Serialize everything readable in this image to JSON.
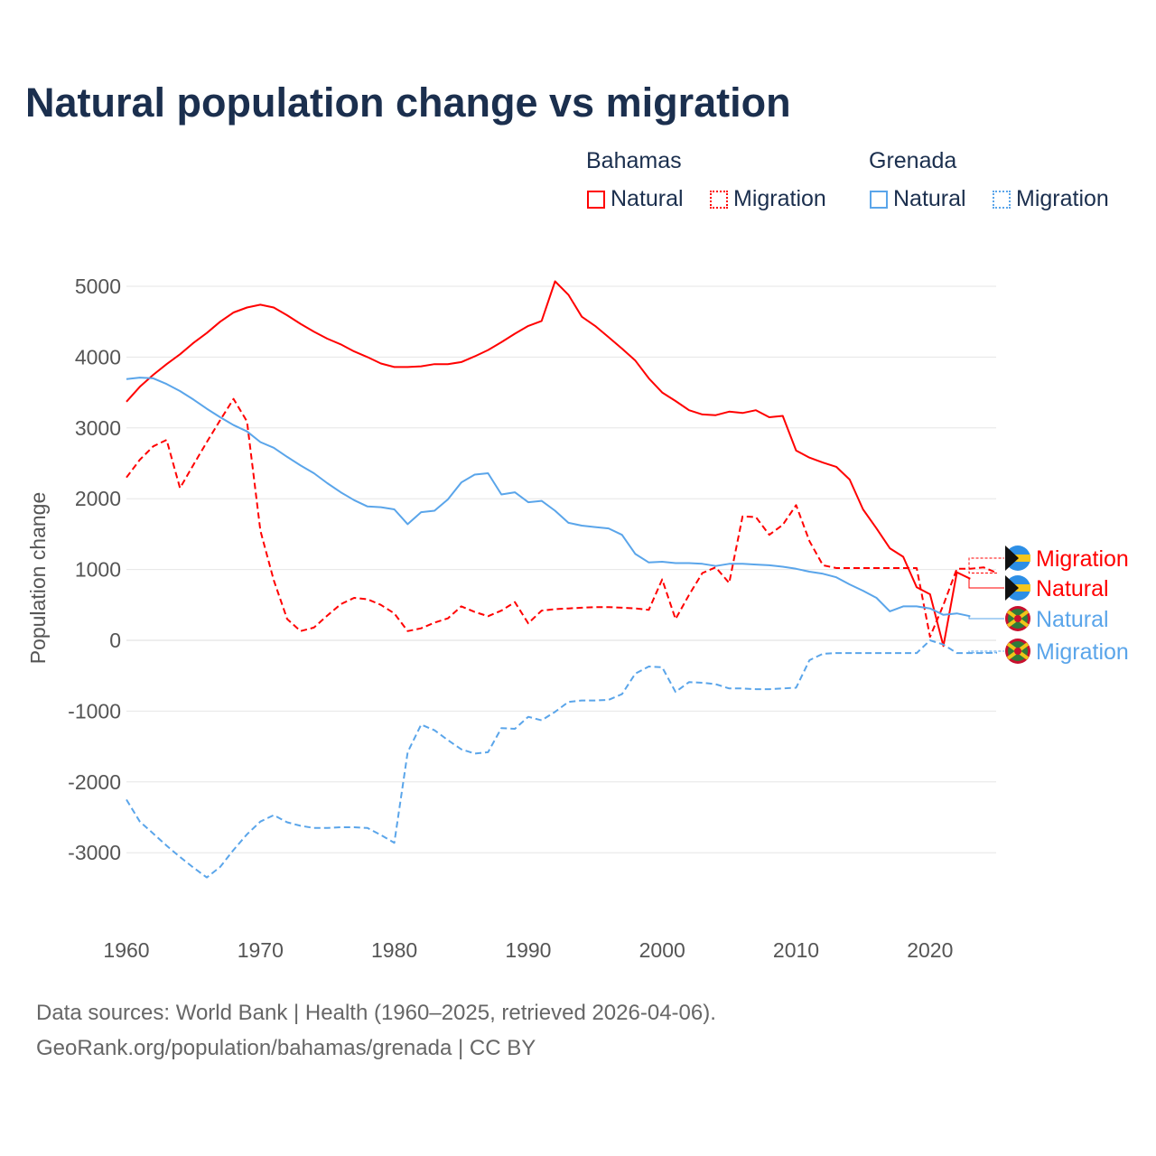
{
  "title": "Natural population change vs migration",
  "legend": {
    "groups": [
      {
        "name": "Bahamas",
        "color": "#ff0000",
        "items": [
          "Natural",
          "Migration"
        ]
      },
      {
        "name": "Grenada",
        "color": "#5aa5ea",
        "items": [
          "Natural",
          "Migration"
        ]
      }
    ]
  },
  "footer": {
    "line1": "Data sources: World Bank | Health (1960–2025, retrieved 2026-04-06).",
    "line2": "GeoRank.org/population/bahamas/grenada | CC BY"
  },
  "chart_data": {
    "type": "line",
    "title": "Natural population change vs migration",
    "xlabel": "",
    "ylabel": "Population change",
    "xlim": [
      1960,
      2025
    ],
    "ylim": [
      -4000,
      5500
    ],
    "xticks": [
      1960,
      1970,
      1980,
      1990,
      2000,
      2010,
      2020
    ],
    "yticks": [
      -3000,
      -2000,
      -1000,
      0,
      1000,
      2000,
      3000,
      4000,
      5000
    ],
    "grid": true,
    "series": [
      {
        "name": "Bahamas Natural",
        "label": "Natural",
        "country": "Bahamas",
        "color": "#ff0000",
        "dash": false,
        "start": 1960,
        "values": [
          3370,
          3580,
          3750,
          3900,
          4040,
          4200,
          4340,
          4500,
          4630,
          4700,
          4740,
          4700,
          4590,
          4470,
          4360,
          4260,
          4180,
          4080,
          4000,
          3910,
          3860,
          3860,
          3870,
          3900,
          3900,
          3930,
          4010,
          4100,
          4210,
          4330,
          4440,
          4510,
          5070,
          4880,
          4570,
          4440,
          4280,
          4120,
          3950,
          3700,
          3500,
          3380,
          3250,
          3190,
          3180,
          3230,
          3210,
          3250,
          3150,
          3170,
          2680,
          2580,
          2510,
          2450,
          2270,
          1850,
          1580,
          1300,
          1180,
          750,
          650,
          -80,
          960,
          870
        ]
      },
      {
        "name": "Bahamas Migration",
        "label": "Migration",
        "country": "Bahamas",
        "color": "#ff0000",
        "dash": true,
        "start": 1960,
        "values": [
          2300,
          2550,
          2740,
          2830,
          2150,
          2480,
          2800,
          3110,
          3410,
          3090,
          1550,
          850,
          300,
          130,
          180,
          350,
          510,
          600,
          580,
          500,
          380,
          130,
          170,
          250,
          310,
          480,
          400,
          340,
          420,
          540,
          240,
          420,
          440,
          450,
          460,
          470,
          470,
          460,
          450,
          430,
          860,
          300,
          640,
          950,
          1030,
          810,
          1750,
          1740,
          1490,
          1630,
          1910,
          1400,
          1060,
          1020,
          1020,
          1020,
          1020,
          1020,
          1020,
          1020,
          50,
          500,
          1010,
          1010,
          1030,
          950
        ]
      },
      {
        "name": "Grenada Natural",
        "label": "Natural",
        "country": "Grenada",
        "color": "#5aa5ea",
        "dash": false,
        "start": 1960,
        "values": [
          3690,
          3710,
          3700,
          3620,
          3520,
          3400,
          3270,
          3150,
          3040,
          2950,
          2800,
          2720,
          2590,
          2470,
          2360,
          2220,
          2090,
          1980,
          1890,
          1880,
          1850,
          1640,
          1810,
          1830,
          1990,
          2230,
          2340,
          2360,
          2060,
          2090,
          1950,
          1970,
          1830,
          1660,
          1620,
          1600,
          1580,
          1490,
          1220,
          1100,
          1110,
          1090,
          1090,
          1080,
          1050,
          1080,
          1080,
          1070,
          1060,
          1040,
          1010,
          970,
          940,
          890,
          790,
          700,
          600,
          410,
          480,
          480,
          450,
          360,
          380,
          340
        ]
      },
      {
        "name": "Grenada Migration",
        "label": "Migration",
        "country": "Grenada",
        "color": "#5aa5ea",
        "dash": true,
        "start": 1960,
        "values": [
          -2250,
          -2560,
          -2730,
          -2900,
          -3060,
          -3210,
          -3350,
          -3200,
          -2960,
          -2740,
          -2560,
          -2470,
          -2570,
          -2620,
          -2650,
          -2650,
          -2640,
          -2640,
          -2650,
          -2750,
          -2860,
          -1580,
          -1190,
          -1270,
          -1410,
          -1540,
          -1600,
          -1580,
          -1240,
          -1250,
          -1080,
          -1130,
          -1010,
          -870,
          -850,
          -850,
          -840,
          -760,
          -470,
          -370,
          -380,
          -730,
          -590,
          -600,
          -620,
          -680,
          -680,
          -690,
          -690,
          -680,
          -670,
          -280,
          -190,
          -180,
          -180,
          -180,
          -180,
          -180,
          -180,
          -180,
          0,
          -60,
          -180,
          -180,
          -180,
          -175
        ]
      }
    ]
  }
}
